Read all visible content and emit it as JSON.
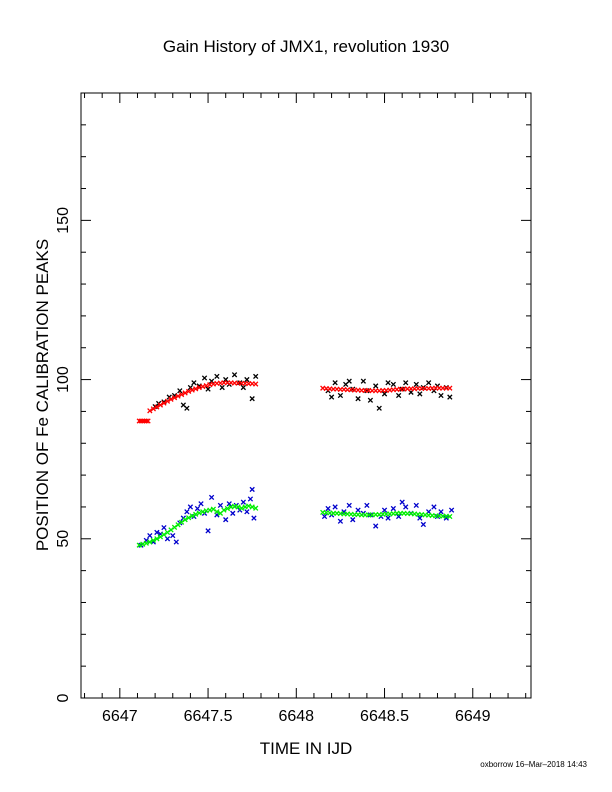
{
  "chart_data": {
    "type": "scatter",
    "title": "Gain History of JMX1, revolution 1930",
    "xlabel": "TIME IN IJD",
    "ylabel": "POSITION OF Fe CALIBRATION PEAKS",
    "xlim": [
      6646.78,
      6649.33
    ],
    "ylim": [
      0,
      190
    ],
    "x_ticks": [
      6647,
      6647.5,
      6648,
      6648.5,
      6649
    ],
    "x_tick_labels": [
      "6647",
      "6647.5",
      "6648",
      "6648.5",
      "6649"
    ],
    "y_ticks": [
      0,
      50,
      100,
      150
    ],
    "y_tick_labels": [
      "0",
      "50",
      "100",
      "150"
    ],
    "grid": false,
    "series": [
      {
        "marker": "x",
        "color": "#000000",
        "points": [
          [
            6647.2,
            91.5
          ],
          [
            6647.22,
            92.5
          ],
          [
            6647.25,
            93.0
          ],
          [
            6647.28,
            94.5
          ],
          [
            6647.31,
            95.0
          ],
          [
            6647.34,
            96.5
          ],
          [
            6647.36,
            92.0
          ],
          [
            6647.38,
            91.0
          ],
          [
            6647.4,
            97.5
          ],
          [
            6647.42,
            99.0
          ],
          [
            6647.45,
            98.0
          ],
          [
            6647.48,
            100.5
          ],
          [
            6647.5,
            97.0
          ],
          [
            6647.52,
            99.5
          ],
          [
            6647.55,
            101.0
          ],
          [
            6647.58,
            97.5
          ],
          [
            6647.6,
            100.0
          ],
          [
            6647.62,
            98.5
          ],
          [
            6647.65,
            101.5
          ],
          [
            6647.68,
            99.0
          ],
          [
            6647.7,
            97.5
          ],
          [
            6647.72,
            100.0
          ],
          [
            6647.75,
            94.0
          ],
          [
            6647.77,
            101.0
          ],
          [
            6648.18,
            96.5
          ],
          [
            6648.2,
            94.5
          ],
          [
            6648.22,
            99.0
          ],
          [
            6648.25,
            95.0
          ],
          [
            6648.28,
            98.5
          ],
          [
            6648.3,
            99.5
          ],
          [
            6648.32,
            97.0
          ],
          [
            6648.35,
            94.0
          ],
          [
            6648.38,
            99.5
          ],
          [
            6648.4,
            96.5
          ],
          [
            6648.42,
            93.5
          ],
          [
            6648.45,
            98.0
          ],
          [
            6648.47,
            91.0
          ],
          [
            6648.5,
            95.5
          ],
          [
            6648.52,
            99.0
          ],
          [
            6648.55,
            98.5
          ],
          [
            6648.58,
            95.0
          ],
          [
            6648.6,
            97.0
          ],
          [
            6648.62,
            99.0
          ],
          [
            6648.65,
            96.0
          ],
          [
            6648.68,
            98.5
          ],
          [
            6648.7,
            95.5
          ],
          [
            6648.72,
            97.5
          ],
          [
            6648.75,
            99.0
          ],
          [
            6648.78,
            96.5
          ],
          [
            6648.8,
            98.0
          ],
          [
            6648.82,
            95.0
          ],
          [
            6648.85,
            97.5
          ],
          [
            6648.87,
            94.5
          ]
        ]
      },
      {
        "marker": "x",
        "color": "#ff0000",
        "points": [
          [
            6647.11,
            87.0
          ],
          [
            6647.12,
            87.0
          ],
          [
            6647.13,
            87.0
          ],
          [
            6647.14,
            87.0
          ],
          [
            6647.15,
            87.0
          ],
          [
            6647.16,
            87.0
          ],
          [
            6647.17,
            90.2
          ],
          [
            6647.19,
            90.8
          ],
          [
            6647.21,
            91.4
          ],
          [
            6647.23,
            92.0
          ],
          [
            6647.25,
            92.6
          ],
          [
            6647.27,
            93.2
          ],
          [
            6647.29,
            93.8
          ],
          [
            6647.31,
            94.3
          ],
          [
            6647.33,
            94.8
          ],
          [
            6647.35,
            95.3
          ],
          [
            6647.37,
            95.8
          ],
          [
            6647.39,
            96.3
          ],
          [
            6647.41,
            96.7
          ],
          [
            6647.43,
            97.1
          ],
          [
            6647.45,
            97.5
          ],
          [
            6647.47,
            97.8
          ],
          [
            6647.49,
            98.1
          ],
          [
            6647.51,
            98.4
          ],
          [
            6647.53,
            98.6
          ],
          [
            6647.55,
            98.8
          ],
          [
            6647.57,
            98.9
          ],
          [
            6647.59,
            99.0
          ],
          [
            6647.61,
            99.0
          ],
          [
            6647.63,
            99.0
          ],
          [
            6647.65,
            98.9
          ],
          [
            6647.67,
            98.9
          ],
          [
            6647.69,
            98.8
          ],
          [
            6647.71,
            98.8
          ],
          [
            6647.73,
            98.7
          ],
          [
            6647.75,
            98.7
          ],
          [
            6647.77,
            98.6
          ],
          [
            6648.15,
            97.3
          ],
          [
            6648.17,
            97.2
          ],
          [
            6648.19,
            97.1
          ],
          [
            6648.21,
            97.0
          ],
          [
            6648.23,
            97.0
          ],
          [
            6648.25,
            96.9
          ],
          [
            6648.27,
            96.9
          ],
          [
            6648.29,
            96.8
          ],
          [
            6648.31,
            96.8
          ],
          [
            6648.33,
            96.7
          ],
          [
            6648.35,
            96.7
          ],
          [
            6648.37,
            96.6
          ],
          [
            6648.39,
            96.6
          ],
          [
            6648.41,
            96.6
          ],
          [
            6648.43,
            96.5
          ],
          [
            6648.45,
            96.5
          ],
          [
            6648.47,
            96.5
          ],
          [
            6648.49,
            96.6
          ],
          [
            6648.51,
            96.6
          ],
          [
            6648.53,
            96.7
          ],
          [
            6648.55,
            96.8
          ],
          [
            6648.57,
            96.9
          ],
          [
            6648.59,
            97.0
          ],
          [
            6648.61,
            97.0
          ],
          [
            6648.63,
            97.1
          ],
          [
            6648.65,
            97.1
          ],
          [
            6648.67,
            97.1
          ],
          [
            6648.69,
            97.2
          ],
          [
            6648.71,
            97.2
          ],
          [
            6648.73,
            97.2
          ],
          [
            6648.75,
            97.2
          ],
          [
            6648.77,
            97.3
          ],
          [
            6648.79,
            97.3
          ],
          [
            6648.81,
            97.3
          ],
          [
            6648.83,
            97.3
          ],
          [
            6648.85,
            97.3
          ],
          [
            6648.87,
            97.3
          ]
        ]
      },
      {
        "marker": "x",
        "color": "#0000cc",
        "points": [
          [
            6647.12,
            48.0
          ],
          [
            6647.15,
            49.5
          ],
          [
            6647.17,
            51.0
          ],
          [
            6647.19,
            49.0
          ],
          [
            6647.21,
            52.0
          ],
          [
            6647.23,
            51.5
          ],
          [
            6647.25,
            53.5
          ],
          [
            6647.27,
            50.0
          ],
          [
            6647.3,
            51.0
          ],
          [
            6647.32,
            49.0
          ],
          [
            6647.34,
            55.0
          ],
          [
            6647.36,
            56.5
          ],
          [
            6647.38,
            58.5
          ],
          [
            6647.4,
            60.0
          ],
          [
            6647.42,
            57.0
          ],
          [
            6647.44,
            59.5
          ],
          [
            6647.46,
            61.0
          ],
          [
            6647.48,
            58.0
          ],
          [
            6647.5,
            52.5
          ],
          [
            6647.52,
            63.0
          ],
          [
            6647.55,
            57.5
          ],
          [
            6647.57,
            60.5
          ],
          [
            6647.6,
            56.0
          ],
          [
            6647.62,
            61.0
          ],
          [
            6647.64,
            58.0
          ],
          [
            6647.66,
            60.5
          ],
          [
            6647.68,
            59.0
          ],
          [
            6647.7,
            61.5
          ],
          [
            6647.72,
            58.5
          ],
          [
            6647.74,
            62.5
          ],
          [
            6647.75,
            65.5
          ],
          [
            6647.76,
            56.5
          ],
          [
            6648.16,
            57.0
          ],
          [
            6648.18,
            59.5
          ],
          [
            6648.2,
            57.5
          ],
          [
            6648.22,
            60.0
          ],
          [
            6648.25,
            55.5
          ],
          [
            6648.27,
            58.5
          ],
          [
            6648.3,
            60.5
          ],
          [
            6648.32,
            56.0
          ],
          [
            6648.35,
            59.0
          ],
          [
            6648.38,
            58.0
          ],
          [
            6648.4,
            60.5
          ],
          [
            6648.42,
            57.5
          ],
          [
            6648.45,
            54.0
          ],
          [
            6648.48,
            57.0
          ],
          [
            6648.5,
            59.0
          ],
          [
            6648.52,
            56.5
          ],
          [
            6648.55,
            59.5
          ],
          [
            6648.58,
            57.0
          ],
          [
            6648.6,
            61.5
          ],
          [
            6648.62,
            60.0
          ],
          [
            6648.65,
            58.0
          ],
          [
            6648.68,
            60.5
          ],
          [
            6648.7,
            56.5
          ],
          [
            6648.72,
            54.5
          ],
          [
            6648.75,
            58.5
          ],
          [
            6648.78,
            60.0
          ],
          [
            6648.8,
            57.0
          ],
          [
            6648.82,
            58.5
          ],
          [
            6648.85,
            56.5
          ],
          [
            6648.88,
            59.0
          ]
        ]
      },
      {
        "marker": "x",
        "color": "#00ee00",
        "points": [
          [
            6647.11,
            48.0
          ],
          [
            6647.13,
            48.3
          ],
          [
            6647.15,
            48.6
          ],
          [
            6647.17,
            49.0
          ],
          [
            6647.19,
            49.5
          ],
          [
            6647.21,
            50.0
          ],
          [
            6647.23,
            50.6
          ],
          [
            6647.25,
            51.3
          ],
          [
            6647.27,
            52.0
          ],
          [
            6647.29,
            52.8
          ],
          [
            6647.31,
            53.6
          ],
          [
            6647.33,
            54.4
          ],
          [
            6647.35,
            55.2
          ],
          [
            6647.37,
            56.0
          ],
          [
            6647.39,
            56.6
          ],
          [
            6647.41,
            57.2
          ],
          [
            6647.43,
            57.7
          ],
          [
            6647.45,
            58.1
          ],
          [
            6647.47,
            58.5
          ],
          [
            6647.49,
            58.8
          ],
          [
            6647.51,
            59.0
          ],
          [
            6647.53,
            59.3
          ],
          [
            6647.55,
            58.5
          ],
          [
            6647.57,
            58.0
          ],
          [
            6647.59,
            59.0
          ],
          [
            6647.61,
            59.5
          ],
          [
            6647.63,
            60.0
          ],
          [
            6647.65,
            60.2
          ],
          [
            6647.67,
            60.0
          ],
          [
            6647.69,
            59.6
          ],
          [
            6647.71,
            60.0
          ],
          [
            6647.73,
            60.3
          ],
          [
            6647.75,
            60.0
          ],
          [
            6647.77,
            59.6
          ],
          [
            6648.15,
            58.3
          ],
          [
            6648.17,
            58.2
          ],
          [
            6648.19,
            58.1
          ],
          [
            6648.21,
            58.0
          ],
          [
            6648.23,
            58.0
          ],
          [
            6648.25,
            57.9
          ],
          [
            6648.27,
            57.8
          ],
          [
            6648.29,
            57.8
          ],
          [
            6648.31,
            57.7
          ],
          [
            6648.33,
            57.6
          ],
          [
            6648.35,
            57.6
          ],
          [
            6648.37,
            57.5
          ],
          [
            6648.39,
            57.5
          ],
          [
            6648.41,
            57.5
          ],
          [
            6648.43,
            57.5
          ],
          [
            6648.45,
            57.6
          ],
          [
            6648.47,
            57.6
          ],
          [
            6648.49,
            57.7
          ],
          [
            6648.51,
            57.8
          ],
          [
            6648.53,
            57.8
          ],
          [
            6648.55,
            57.9
          ],
          [
            6648.57,
            58.0
          ],
          [
            6648.59,
            58.0
          ],
          [
            6648.61,
            58.0
          ],
          [
            6648.63,
            57.9
          ],
          [
            6648.65,
            57.9
          ],
          [
            6648.67,
            57.8
          ],
          [
            6648.69,
            57.7
          ],
          [
            6648.71,
            57.6
          ],
          [
            6648.73,
            57.5
          ],
          [
            6648.75,
            57.4
          ],
          [
            6648.77,
            57.3
          ],
          [
            6648.79,
            57.2
          ],
          [
            6648.81,
            57.2
          ],
          [
            6648.83,
            57.1
          ],
          [
            6648.85,
            57.1
          ],
          [
            6648.87,
            57.0
          ]
        ]
      }
    ]
  },
  "footer": {
    "credit": "oxborrow 16–Mar–2018 14:43"
  }
}
